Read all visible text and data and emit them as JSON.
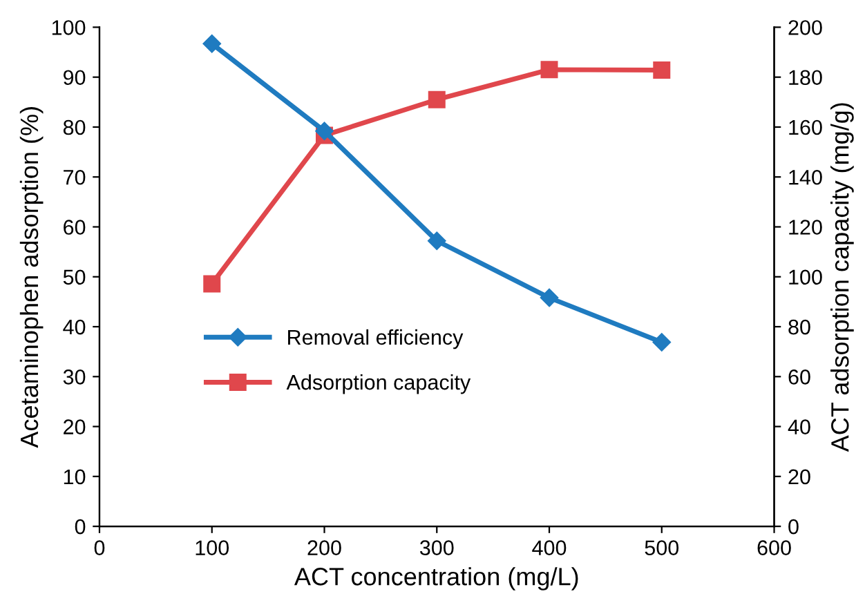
{
  "chart_data": {
    "type": "line",
    "xlabel": "ACT concentration (mg/L)",
    "ylabel": "Acetaminophen adsorption (%)",
    "y2label": "ACT adsorption capacity (mg/g)",
    "x": [
      100,
      200,
      300,
      400,
      500
    ],
    "series": [
      {
        "name": "Removal efficiency",
        "color": "#1f7bc0",
        "values": [
          96.7,
          79.2,
          57.2,
          45.8,
          36.9
        ],
        "marker": "diamond"
      },
      {
        "name": "Adsorption capacity",
        "color": "#e0474c",
        "values": [
          97.2,
          156.7,
          171,
          183,
          182.8
        ],
        "marker": "square",
        "axis": "y2"
      }
    ],
    "xlim": [
      0,
      600
    ],
    "xticks": [
      0,
      100,
      200,
      300,
      400,
      500,
      600
    ],
    "ylim": [
      0,
      100
    ],
    "yticks": [
      0,
      10,
      20,
      30,
      40,
      50,
      60,
      70,
      80,
      90,
      100
    ],
    "y2lim": [
      0,
      200
    ],
    "y2ticks": [
      0,
      20,
      40,
      60,
      80,
      100,
      120,
      140,
      160,
      180,
      200
    ],
    "grid": false,
    "legend": "left",
    "line_style": "solid"
  }
}
